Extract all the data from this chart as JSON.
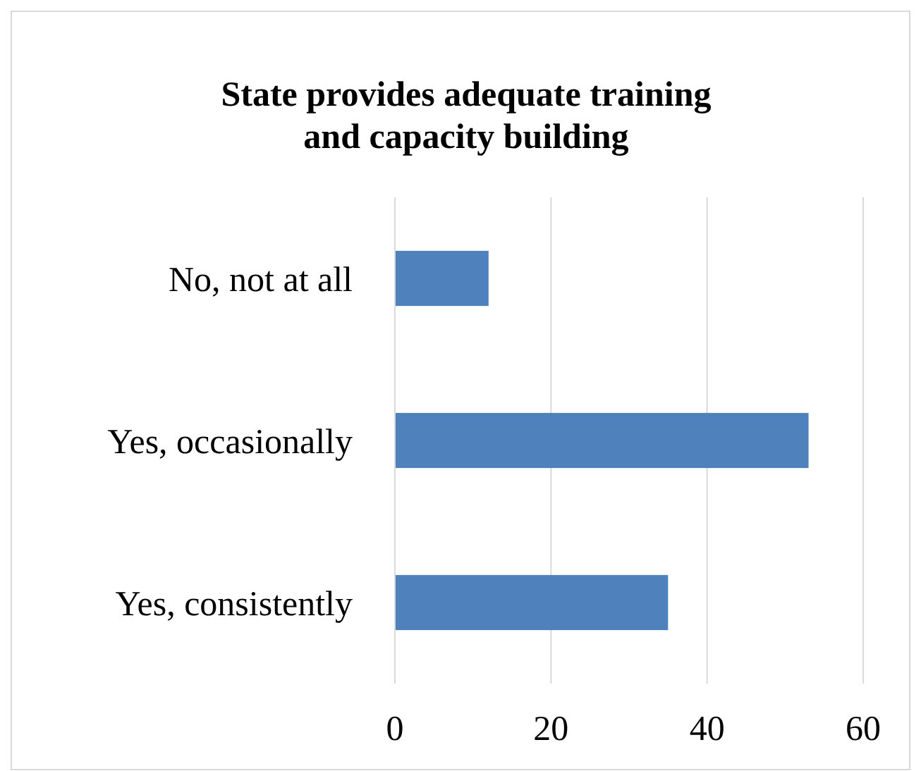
{
  "chart_data": {
    "type": "bar",
    "orientation": "horizontal",
    "title": "State provides adequate training\nand capacity building",
    "categories": [
      "No, not at all",
      "Yes, occasionally",
      "Yes, consistently"
    ],
    "values": [
      12,
      53,
      35
    ],
    "color": "#4f81bd",
    "xlim": [
      0,
      60
    ],
    "xticks": [
      0,
      20,
      40,
      60
    ],
    "grid": "x"
  }
}
